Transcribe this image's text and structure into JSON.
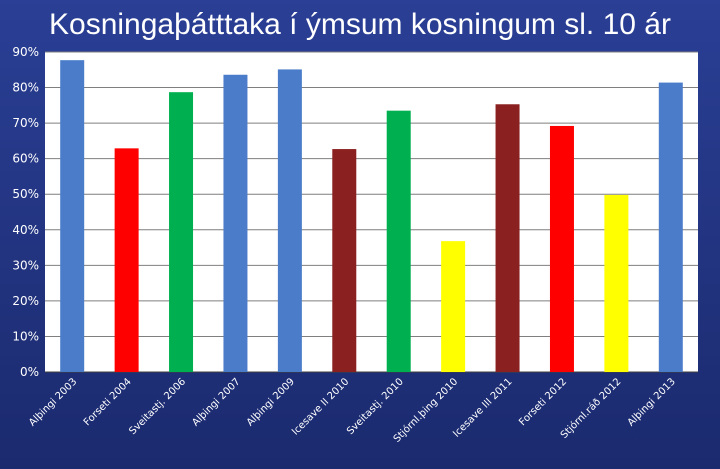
{
  "chart_data": {
    "type": "bar",
    "title": "Kosningaþátttaka í ýmsum kosningum sl. 10 ár",
    "xlabel": "",
    "ylabel": "",
    "ylim": [
      0,
      90
    ],
    "ytick_values": [
      0,
      10,
      20,
      30,
      40,
      50,
      60,
      70,
      80,
      90
    ],
    "ytick_labels": [
      "0%",
      "10%",
      "20%",
      "30%",
      "40%",
      "50%",
      "60%",
      "70%",
      "80%",
      "90%"
    ],
    "grid": true,
    "legend": "none",
    "categories": [
      "Alþingi 2003",
      "Forseti 2004",
      "Sveitastj. 2006",
      "Alþingi 2007",
      "Alþingi 2009",
      "Icesave II 2010",
      "Sveitastj. 2010",
      "Stjórnl.þing 2010",
      "Icesave III 2011",
      "Forseti 2012",
      "Stjórnl.ráð 2012",
      "Alþingi 2013"
    ],
    "values": [
      87.7,
      62.9,
      78.7,
      83.6,
      85.1,
      62.7,
      73.5,
      36.8,
      75.3,
      69.2,
      49.8,
      81.4
    ],
    "bar_colors": [
      "#4a7cc9",
      "#ff0000",
      "#00b050",
      "#4a7cc9",
      "#4a7cc9",
      "#8b2020",
      "#00b050",
      "#ffff00",
      "#8b2020",
      "#ff0000",
      "#ffff00",
      "#4a7cc9"
    ]
  }
}
